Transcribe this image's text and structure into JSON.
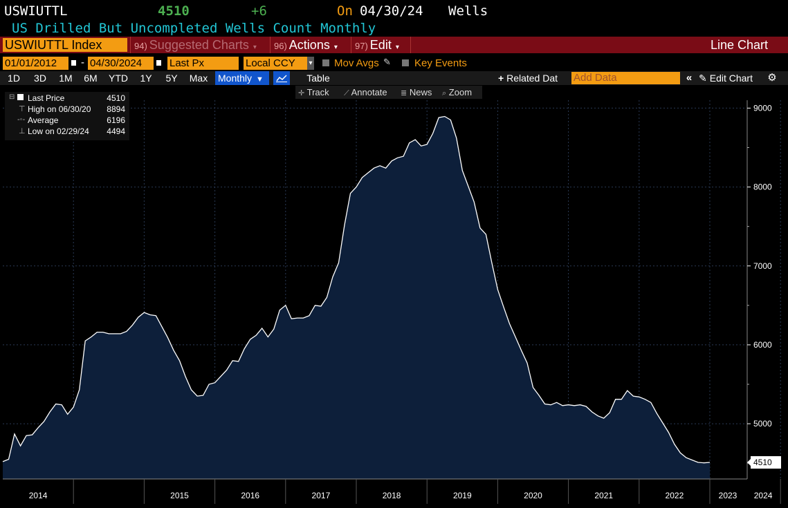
{
  "header": {
    "ticker": "USWIUTTL",
    "last_value": "4510",
    "change": "+6",
    "on_label": "On",
    "date": "04/30/24",
    "unit": "Wells",
    "description": "US Drilled But Uncompleted Wells Count Monthly"
  },
  "command_bar": {
    "security": "USWIUTTL Index",
    "suggested_num": "94)",
    "suggested_label": "Suggested Charts",
    "actions_num": "96)",
    "actions_label": "Actions",
    "edit_num": "97)",
    "edit_label": "Edit",
    "chart_type": "Line Chart"
  },
  "date_row": {
    "start_date": "01/01/2012",
    "dash": "-",
    "end_date": "04/30/2024",
    "field": "Last Px",
    "currency": "Local CCY",
    "mov_avgs": "Mov Avgs",
    "key_events": "Key Events"
  },
  "period_row": {
    "periods": [
      "1D",
      "3D",
      "1M",
      "6M",
      "YTD",
      "1Y",
      "5Y",
      "Max"
    ],
    "frequency": "Monthly",
    "table": "Table",
    "related": "Related Dat",
    "add_data_placeholder": "Add Data",
    "edit_chart": "Edit Chart"
  },
  "toolbar": {
    "track": "Track",
    "annotate": "Annotate",
    "news": "News",
    "zoom": "Zoom"
  },
  "legend": {
    "last_price_label": "Last Price",
    "last_price_value": "4510",
    "high_label": "High on 06/30/20",
    "high_value": "8894",
    "average_label": "Average",
    "average_value": "6196",
    "low_label": "Low on 02/29/24",
    "low_value": "4494"
  },
  "colors": {
    "accent_orange": "#f39c12",
    "command_bar_red": "#7a0c16",
    "ticker_green": "#4caf50",
    "description_cyan": "#22c5d4",
    "area_fill": "#0d1f3a",
    "line": "#ffffff"
  },
  "chart_data": {
    "type": "area",
    "ylim": [
      4300,
      9100
    ],
    "yticks": [
      5000,
      6000,
      7000,
      8000,
      9000
    ],
    "xtick_labels": [
      "2014",
      "2015",
      "2016",
      "2017",
      "2018",
      "2019",
      "2020",
      "2021",
      "2022",
      "2023",
      "2024"
    ],
    "last_value_label": "4510",
    "x_start": "2013-01",
    "series": [
      {
        "values": [
          4520,
          4550,
          4870,
          4720,
          4850,
          4860,
          4950,
          5030,
          5150,
          5250,
          5240,
          5120,
          5210,
          5430,
          6050,
          6100,
          6160,
          6160,
          6140,
          6140,
          6140,
          6170,
          6250,
          6350,
          6410,
          6380,
          6370,
          6230,
          6090,
          5930,
          5800,
          5600,
          5430,
          5350,
          5360,
          5500,
          5520,
          5600,
          5680,
          5800,
          5790,
          5950,
          6070,
          6120,
          6210,
          6100,
          6200,
          6440,
          6500,
          6330,
          6340,
          6340,
          6370,
          6500,
          6490,
          6600,
          6860,
          7040,
          7520,
          7920,
          8000,
          8120,
          8180,
          8240,
          8270,
          8240,
          8330,
          8370,
          8390,
          8560,
          8600,
          8520,
          8540,
          8680,
          8880,
          8894,
          8850,
          8620,
          8210,
          8010,
          7810,
          7480,
          7400,
          7040,
          6700,
          6480,
          6270,
          6100,
          5930,
          5770,
          5460,
          5360,
          5250,
          5240,
          5270,
          5230,
          5240,
          5230,
          5240,
          5220,
          5150,
          5100,
          5070,
          5140,
          5310,
          5310,
          5420,
          5350,
          5340,
          5310,
          5270,
          5130,
          5010,
          4890,
          4740,
          4630,
          4570,
          4540,
          4510,
          4504,
          4510
        ]
      }
    ]
  }
}
